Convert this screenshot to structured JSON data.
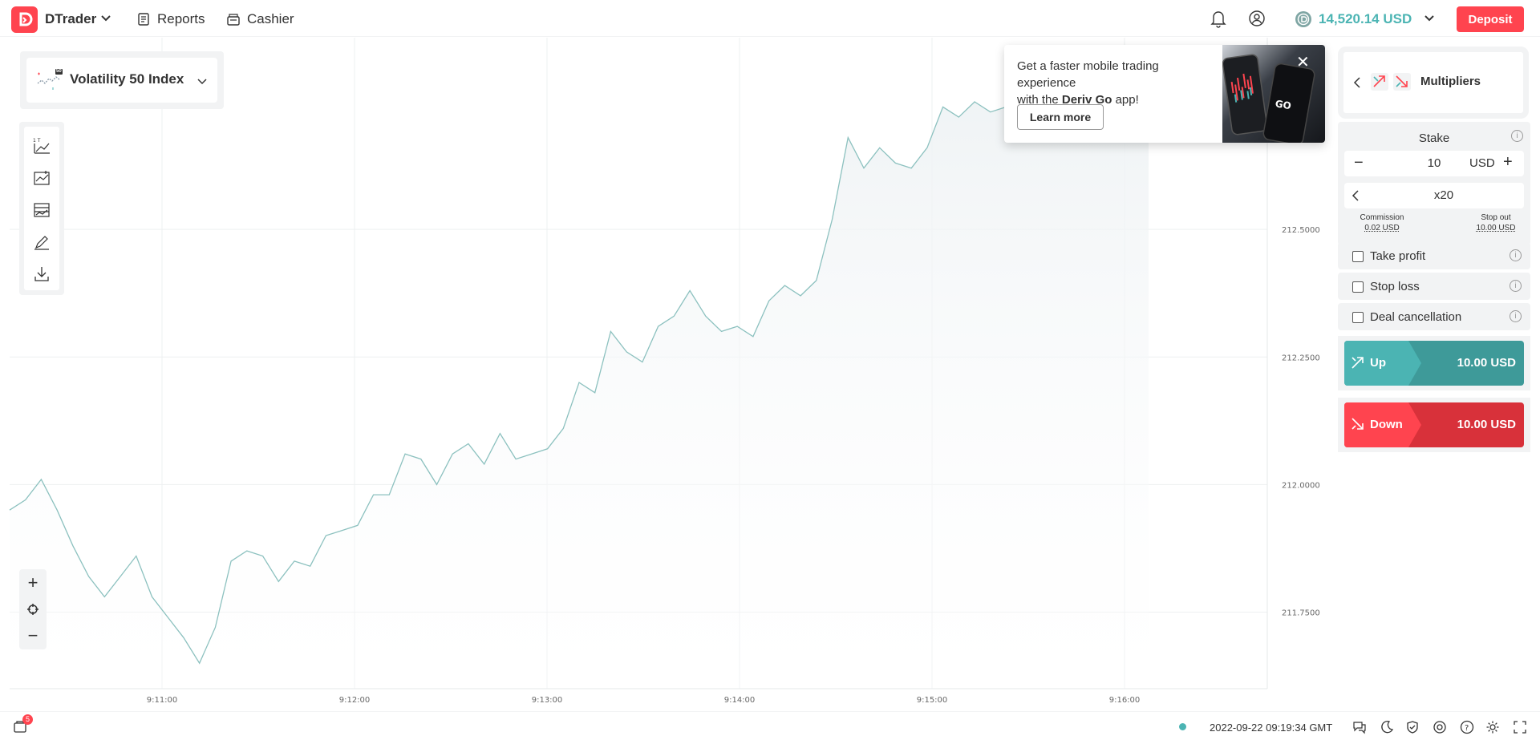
{
  "header": {
    "app_name": "DTrader",
    "reports_label": "Reports",
    "cashier_label": "Cashier",
    "balance": "14,520.14 USD",
    "deposit_label": "Deposit"
  },
  "market": {
    "name": "Volatility 50 Index",
    "badge": "50"
  },
  "promo": {
    "line1": "Get a faster mobile trading experience",
    "line2_prefix": "with the ",
    "line2_bold": "Deriv Go",
    "line2_suffix": " app!",
    "learn_more": "Learn more",
    "brand_text": "GO"
  },
  "trade": {
    "type_label": "Multipliers",
    "stake_title": "Stake",
    "stake_value": "10",
    "currency": "USD",
    "multiplier": "x20",
    "commission_label": "Commission",
    "commission_value": "0.02 USD",
    "stopout_label": "Stop out",
    "stopout_value": "10.00 USD",
    "options": [
      "Take profit",
      "Stop loss",
      "Deal cancellation"
    ],
    "up_label": "Up",
    "up_value": "10.00 USD",
    "down_label": "Down",
    "down_value": "10.00 USD"
  },
  "footer": {
    "datetime": "2022-09-22 09:19:34 GMT",
    "notif_count": "5"
  },
  "colors": {
    "brand_red": "#ff444f",
    "teal": "#4bb4b3",
    "teal_dark": "#3e9a99",
    "red_dark": "#d8313a",
    "chart_line": "#8cc1bf"
  },
  "chart_data": {
    "type": "line",
    "title": "Volatility 50 Index",
    "xlabel": "",
    "ylabel": "",
    "x_ticks": [
      "9:11:00",
      "9:12:00",
      "9:13:00",
      "9:14:00",
      "9:15:00",
      "9:16:00"
    ],
    "y_ticks": [
      "212.5000",
      "212.2500",
      "212.0000",
      "211.7500"
    ],
    "ylim": [
      211.6,
      212.75
    ],
    "x_range": [
      0,
      360
    ],
    "x": [
      0,
      5,
      10,
      15,
      20,
      25,
      30,
      35,
      40,
      45,
      50,
      55,
      60,
      65,
      70,
      75,
      80,
      85,
      90,
      95,
      100,
      105,
      110,
      115,
      120,
      125,
      130,
      135,
      140,
      145,
      150,
      155,
      160,
      165,
      170,
      175,
      180,
      185,
      190,
      195,
      200,
      205,
      210,
      215,
      220,
      225,
      230,
      235,
      240,
      245,
      250,
      255,
      260,
      265,
      270,
      275,
      280,
      285,
      290,
      295,
      300,
      305,
      310,
      315,
      320,
      325,
      330,
      335,
      340,
      345,
      350,
      355,
      360
    ],
    "values": [
      211.95,
      211.97,
      212.01,
      211.95,
      211.88,
      211.82,
      211.78,
      211.82,
      211.86,
      211.78,
      211.74,
      211.7,
      211.65,
      211.72,
      211.85,
      211.87,
      211.86,
      211.81,
      211.85,
      211.84,
      211.9,
      211.91,
      211.92,
      211.98,
      211.98,
      212.06,
      212.05,
      212.0,
      212.06,
      212.08,
      212.04,
      212.1,
      212.05,
      212.06,
      212.07,
      212.11,
      212.2,
      212.18,
      212.3,
      212.26,
      212.24,
      212.31,
      212.33,
      212.38,
      212.33,
      212.3,
      212.31,
      212.29,
      212.36,
      212.39,
      212.37,
      212.4,
      212.52,
      212.68,
      212.62,
      212.66,
      212.63,
      212.62,
      212.66,
      212.74,
      212.72,
      212.75,
      212.73,
      212.74,
      212.72,
      212.71,
      212.72,
      212.7,
      212.69,
      212.7,
      212.71,
      212.7,
      212.7
    ]
  }
}
